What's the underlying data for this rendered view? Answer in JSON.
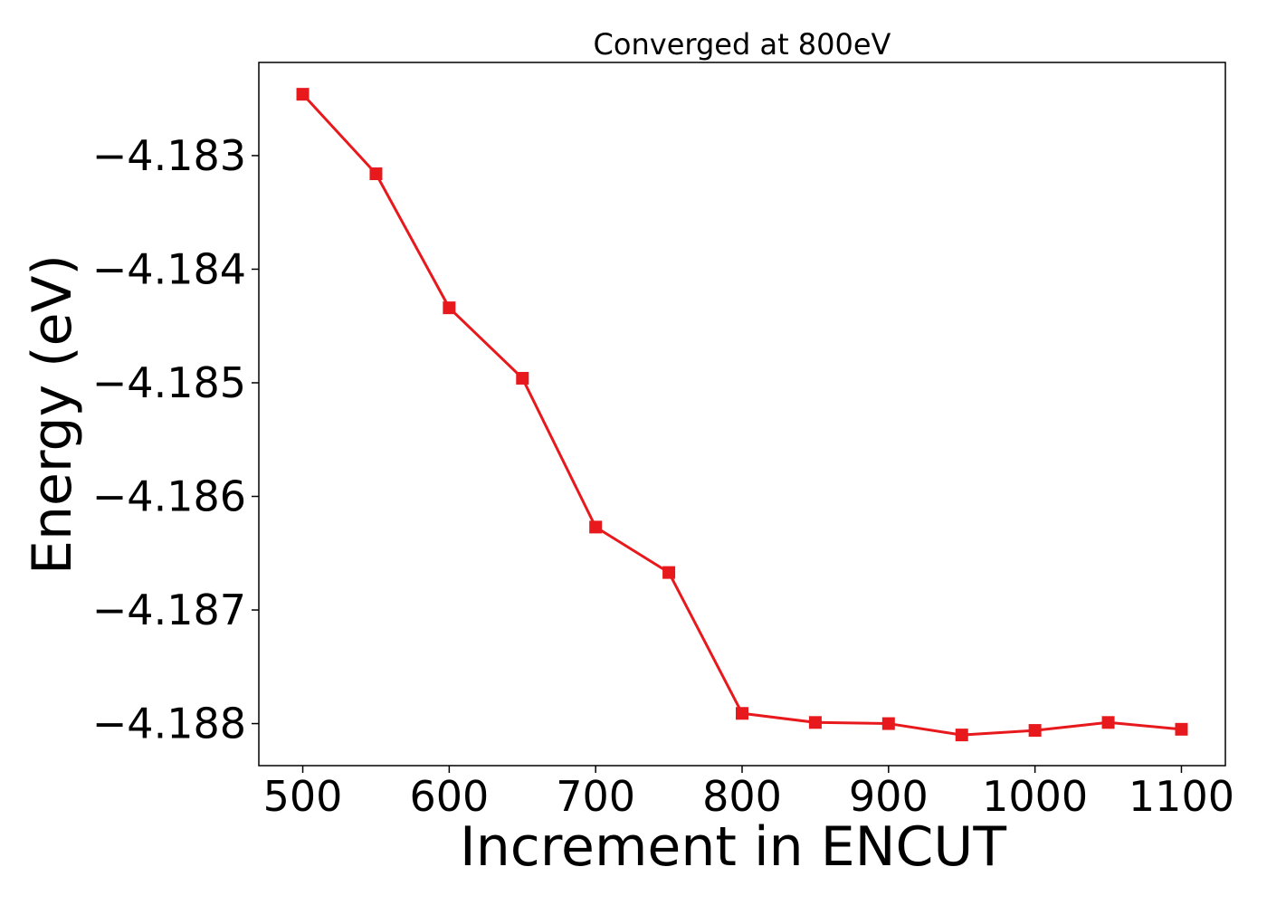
{
  "chart_data": {
    "type": "line",
    "title": "Converged at 800eV",
    "xlabel": "Increment in ENCUT",
    "ylabel": "Energy (eV)",
    "x": [
      500,
      550,
      600,
      650,
      700,
      750,
      800,
      850,
      900,
      950,
      1000,
      1050,
      1100
    ],
    "series": [
      {
        "values": [
          -4.18246,
          -4.18316,
          -4.18434,
          -4.18496,
          -4.18627,
          -4.18667,
          -4.18791,
          -4.18799,
          -4.188,
          -4.1881,
          -4.18806,
          -4.18799,
          -4.18805
        ],
        "color": "#e8191c",
        "marker": "square"
      }
    ],
    "xlim": [
      470,
      1130
    ],
    "ylim": [
      -4.18837,
      -4.18218
    ],
    "xticks": [
      500,
      600,
      700,
      800,
      900,
      1000,
      1100
    ],
    "xtick_labels": [
      "500",
      "600",
      "700",
      "800",
      "900",
      "1000",
      "1100"
    ],
    "yticks": [
      -4.183,
      -4.184,
      -4.185,
      -4.186,
      -4.187,
      -4.188
    ],
    "ytick_labels": [
      "−4.183",
      "−4.184",
      "−4.185",
      "−4.186",
      "−4.187",
      "−4.188"
    ],
    "grid": false,
    "legend": "none"
  }
}
